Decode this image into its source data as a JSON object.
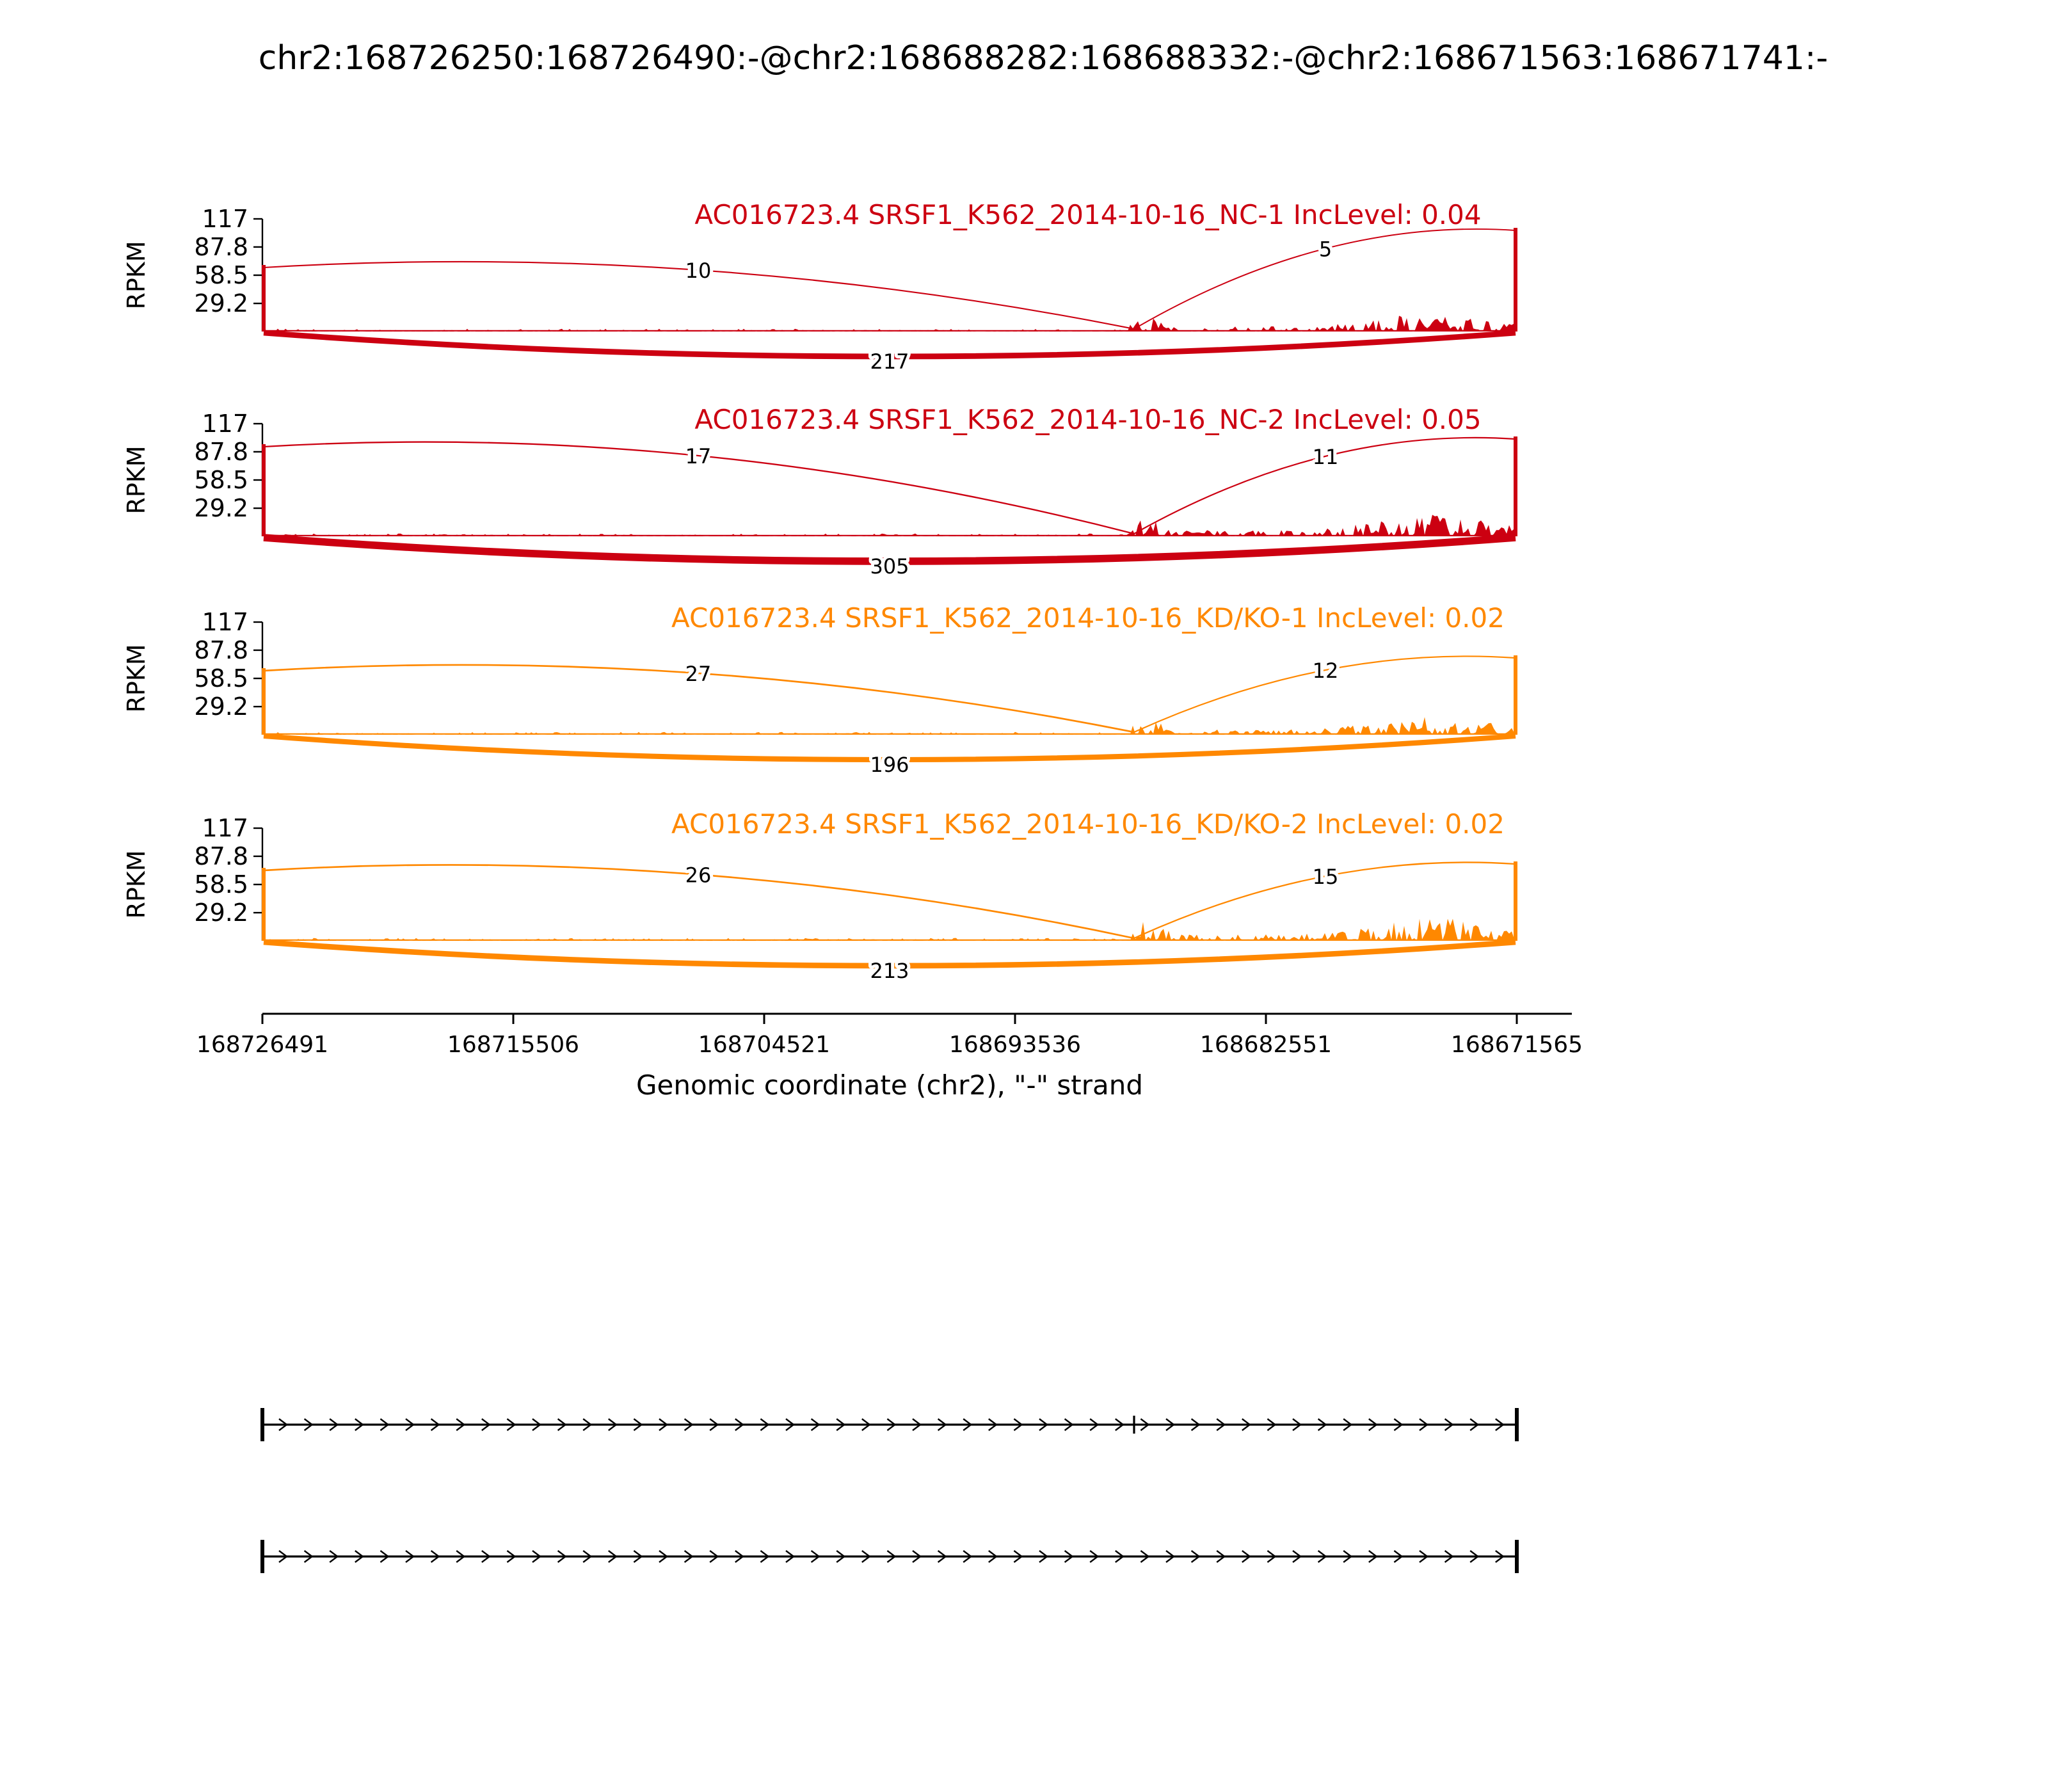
{
  "title": "chr2:168726250:168726490:-@chr2:168688282:168688332:-@chr2:168671563:168671741:-",
  "chart_data": {
    "type": "sashimi",
    "xlabel": "Genomic coordinate (chr2), \"-\" strand",
    "ylabel": "RPKM",
    "y_max": 117,
    "y_ticks": [
      "117",
      "87.8",
      "58.5",
      "29.2"
    ],
    "x_ticks": [
      "168726491",
      "168715506",
      "168704521",
      "168693536",
      "168682551",
      "168671565"
    ],
    "grid": false,
    "legend": "none",
    "tracks": [
      {
        "label": "AC016723.4 SRSF1_K562_2014-10-16_NC-1 IncLevel: 0.04",
        "sample": "SRSF1_K562_2014-10-16_NC-1",
        "gene": "AC016723.4",
        "inc_level": "0.04",
        "color": "#CC0011",
        "junctions": [
          {
            "type": "upstream-inclusion",
            "count": 10
          },
          {
            "type": "downstream-inclusion",
            "count": 5
          },
          {
            "type": "skipping",
            "count": 217
          }
        ]
      },
      {
        "label": "AC016723.4 SRSF1_K562_2014-10-16_NC-2 IncLevel: 0.05",
        "sample": "SRSF1_K562_2014-10-16_NC-2",
        "gene": "AC016723.4",
        "inc_level": "0.05",
        "color": "#CC0011",
        "junctions": [
          {
            "type": "upstream-inclusion",
            "count": 17
          },
          {
            "type": "downstream-inclusion",
            "count": 11
          },
          {
            "type": "skipping",
            "count": 305
          }
        ]
      },
      {
        "label": "AC016723.4 SRSF1_K562_2014-10-16_KD/KO-1 IncLevel: 0.02",
        "sample": "SRSF1_K562_2014-10-16_KD/KO-1",
        "gene": "AC016723.4",
        "inc_level": "0.02",
        "color": "#FF8800",
        "junctions": [
          {
            "type": "upstream-inclusion",
            "count": 27
          },
          {
            "type": "downstream-inclusion",
            "count": 12
          },
          {
            "type": "skipping",
            "count": 196
          }
        ]
      },
      {
        "label": "AC016723.4 SRSF1_K562_2014-10-16_KD/KO-2 IncLevel: 0.02",
        "sample": "SRSF1_K562_2014-10-16_KD/KO-2",
        "gene": "AC016723.4",
        "inc_level": "0.02",
        "color": "#FF8800",
        "junctions": [
          {
            "type": "upstream-inclusion",
            "count": 26
          },
          {
            "type": "downstream-inclusion",
            "count": 15
          },
          {
            "type": "skipping",
            "count": 213
          }
        ]
      }
    ],
    "transcripts": [
      {
        "id": "isoform-1",
        "arrow_direction": "right",
        "internal_exon_tick": true
      },
      {
        "id": "isoform-2",
        "arrow_direction": "right",
        "internal_exon_tick": false
      }
    ]
  }
}
